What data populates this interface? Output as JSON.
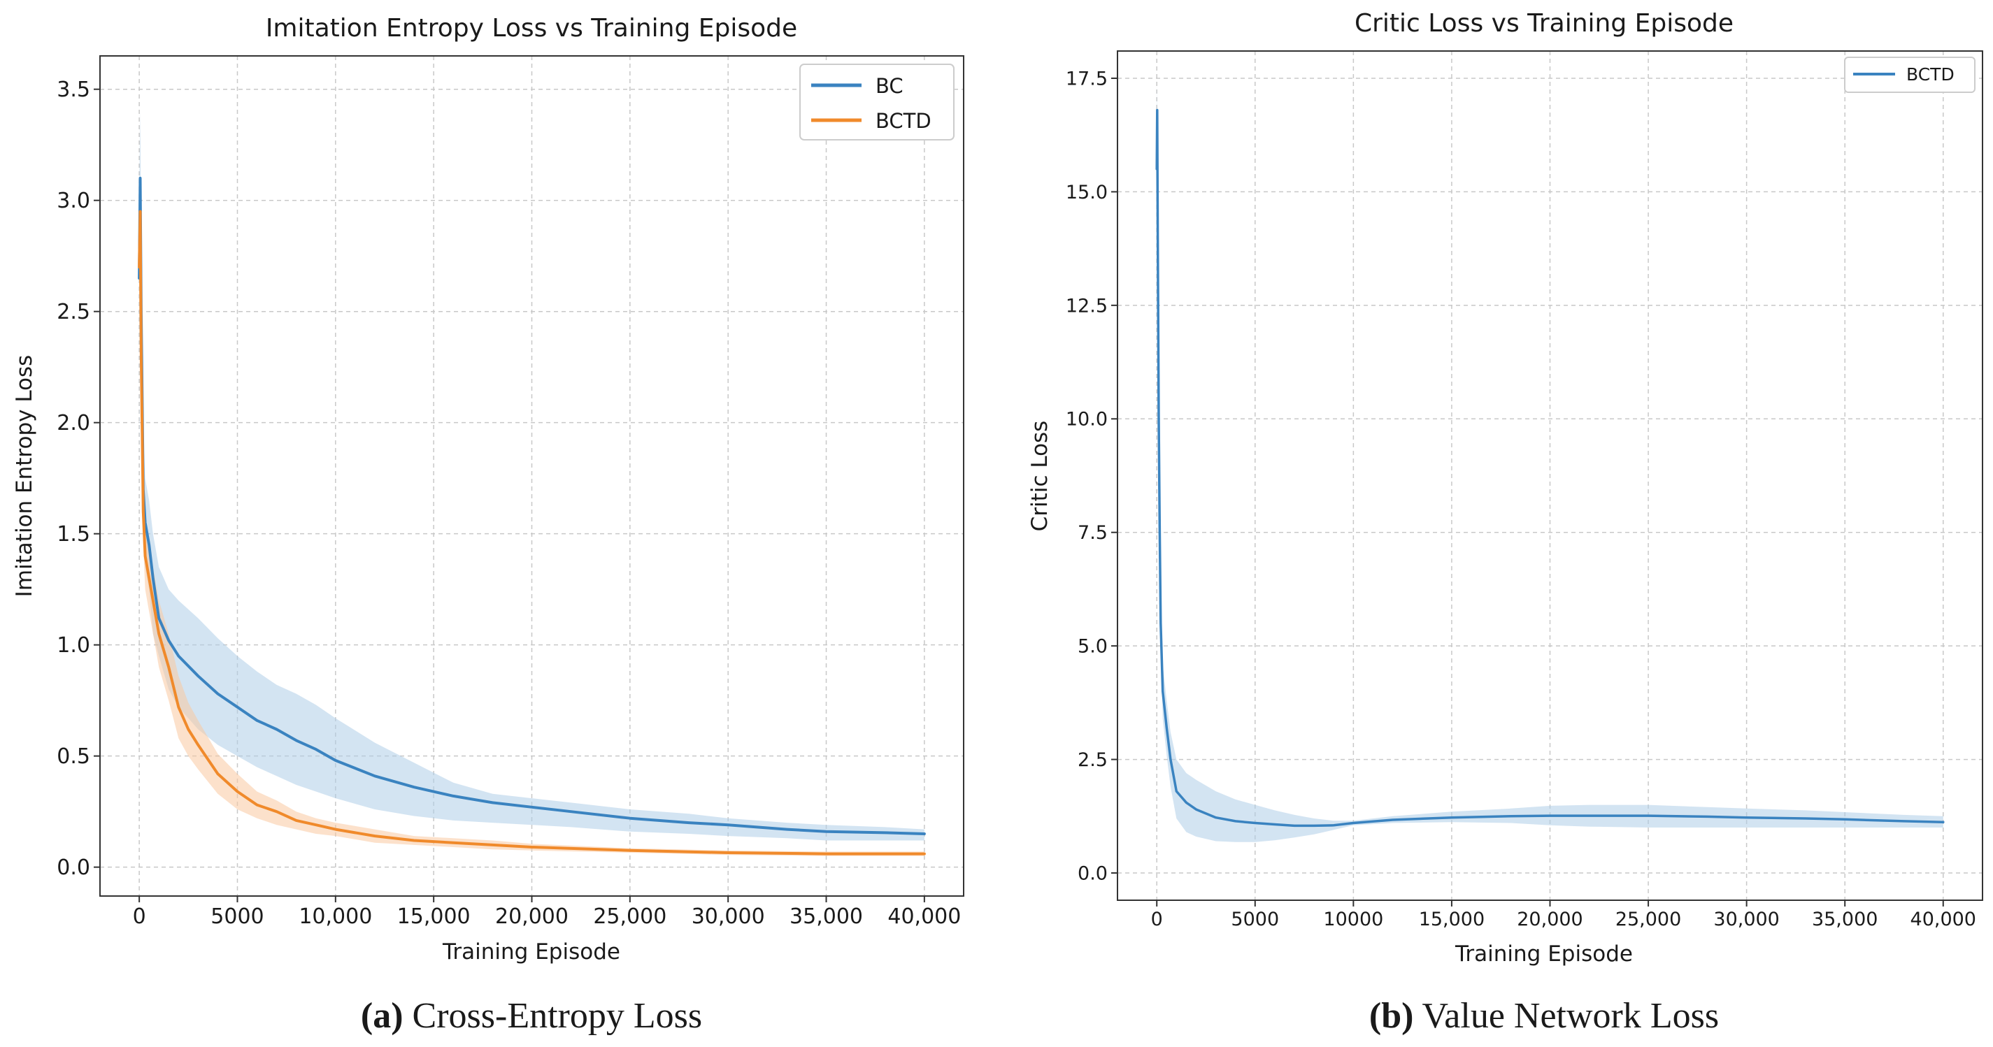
{
  "chart_data": [
    {
      "type": "line",
      "title": "Imitation Entropy Loss vs Training Episode",
      "xlabel": "Training Episode",
      "ylabel": "Imitation Entropy Loss",
      "xlim": [
        -2000,
        42000
      ],
      "ylim": [
        -0.13,
        3.65
      ],
      "xticks": [
        0,
        5000,
        10000,
        15000,
        20000,
        25000,
        30000,
        35000,
        40000
      ],
      "xtick_labels": [
        "0",
        "5000",
        "10,000",
        "15,000",
        "20,000",
        "25,000",
        "30,000",
        "35,000",
        "40,000"
      ],
      "yticks": [
        0.0,
        0.5,
        1.0,
        1.5,
        2.0,
        2.5,
        3.0,
        3.5
      ],
      "ytick_labels": [
        "0.0",
        "0.5",
        "1.0",
        "1.5",
        "2.0",
        "2.5",
        "3.0",
        "3.5"
      ],
      "grid": true,
      "legend_position": "top-right",
      "caption_letter": "(a)",
      "caption_text": " Cross-Entropy Loss",
      "series": [
        {
          "name": "BC",
          "color": "#3a83c0",
          "band_color": "#aecde8",
          "x": [
            0,
            50,
            100,
            200,
            300,
            500,
            700,
            1000,
            1500,
            2000,
            3000,
            4000,
            5000,
            6000,
            7000,
            8000,
            9000,
            10000,
            12000,
            14000,
            16000,
            18000,
            20000,
            22000,
            25000,
            28000,
            30000,
            33000,
            35000,
            38000,
            40000
          ],
          "values": [
            2.65,
            3.1,
            2.5,
            1.7,
            1.55,
            1.45,
            1.3,
            1.12,
            1.02,
            0.95,
            0.86,
            0.78,
            0.72,
            0.66,
            0.62,
            0.57,
            0.53,
            0.48,
            0.41,
            0.36,
            0.32,
            0.29,
            0.27,
            0.25,
            0.22,
            0.2,
            0.19,
            0.17,
            0.16,
            0.155,
            0.15
          ],
          "lower": [
            2.3,
            2.8,
            2.2,
            1.5,
            1.35,
            1.25,
            1.05,
            0.95,
            0.8,
            0.72,
            0.62,
            0.55,
            0.5,
            0.45,
            0.41,
            0.37,
            0.34,
            0.31,
            0.26,
            0.23,
            0.21,
            0.2,
            0.19,
            0.18,
            0.16,
            0.15,
            0.14,
            0.13,
            0.12,
            0.12,
            0.12
          ],
          "upper": [
            3.0,
            3.4,
            2.8,
            1.95,
            1.75,
            1.65,
            1.5,
            1.35,
            1.25,
            1.2,
            1.12,
            1.03,
            0.95,
            0.88,
            0.82,
            0.78,
            0.73,
            0.67,
            0.56,
            0.47,
            0.38,
            0.33,
            0.31,
            0.29,
            0.26,
            0.24,
            0.22,
            0.2,
            0.19,
            0.18,
            0.17
          ]
        },
        {
          "name": "BCTD",
          "color": "#f08a2b",
          "band_color": "#f9c8a0",
          "x": [
            0,
            50,
            100,
            200,
            300,
            500,
            700,
            1000,
            1500,
            2000,
            2500,
            3000,
            4000,
            5000,
            6000,
            7000,
            8000,
            9000,
            10000,
            12000,
            14000,
            16000,
            18000,
            20000,
            25000,
            30000,
            35000,
            40000
          ],
          "values": [
            2.7,
            2.95,
            2.3,
            1.6,
            1.4,
            1.3,
            1.2,
            1.05,
            0.9,
            0.72,
            0.62,
            0.55,
            0.42,
            0.34,
            0.28,
            0.25,
            0.21,
            0.19,
            0.17,
            0.14,
            0.12,
            0.11,
            0.1,
            0.09,
            0.075,
            0.065,
            0.06,
            0.06
          ],
          "lower": [
            2.5,
            2.75,
            2.1,
            1.45,
            1.25,
            1.15,
            1.05,
            0.9,
            0.75,
            0.58,
            0.5,
            0.44,
            0.33,
            0.26,
            0.22,
            0.19,
            0.17,
            0.15,
            0.14,
            0.11,
            0.1,
            0.09,
            0.08,
            0.075,
            0.065,
            0.055,
            0.05,
            0.05
          ],
          "upper": [
            2.9,
            3.1,
            2.5,
            1.75,
            1.55,
            1.45,
            1.35,
            1.2,
            1.05,
            0.86,
            0.74,
            0.66,
            0.51,
            0.42,
            0.34,
            0.3,
            0.25,
            0.22,
            0.2,
            0.17,
            0.14,
            0.13,
            0.12,
            0.105,
            0.085,
            0.075,
            0.07,
            0.07
          ]
        }
      ]
    },
    {
      "type": "line",
      "title": "Critic Loss vs Training Episode",
      "xlabel": "Training Episode",
      "ylabel": "Critic Loss",
      "xlim": [
        -2000,
        42000
      ],
      "ylim": [
        -0.6,
        18.1
      ],
      "xticks": [
        0,
        5000,
        10000,
        15000,
        20000,
        25000,
        30000,
        35000,
        40000
      ],
      "xtick_labels": [
        "0",
        "5000",
        "10000",
        "15,000",
        "20,000",
        "25,000",
        "30,000",
        "35,000",
        "40,000"
      ],
      "yticks": [
        0.0,
        2.5,
        5.0,
        7.5,
        10.0,
        12.5,
        15.0,
        17.5
      ],
      "ytick_labels": [
        "0.0",
        "2.5",
        "5.0",
        "7.5",
        "10.0",
        "12.5",
        "15.0",
        "17.5"
      ],
      "grid": true,
      "legend_position": "top-right",
      "caption_letter": "(b)",
      "caption_text": " Value Network Loss",
      "series": [
        {
          "name": "BCTD",
          "color": "#3a83c0",
          "band_color": "#aecde8",
          "x": [
            0,
            20,
            50,
            100,
            150,
            200,
            300,
            400,
            500,
            700,
            1000,
            1500,
            2000,
            3000,
            4000,
            5000,
            6000,
            7000,
            8000,
            9000,
            10000,
            12000,
            15000,
            18000,
            20000,
            22000,
            25000,
            28000,
            30000,
            33000,
            35000,
            38000,
            40000
          ],
          "values": [
            15.5,
            16.8,
            14.0,
            10.0,
            7.5,
            5.5,
            4.0,
            3.6,
            3.2,
            2.5,
            1.8,
            1.55,
            1.4,
            1.22,
            1.14,
            1.1,
            1.07,
            1.04,
            1.04,
            1.05,
            1.1,
            1.17,
            1.22,
            1.25,
            1.26,
            1.26,
            1.26,
            1.24,
            1.22,
            1.2,
            1.18,
            1.14,
            1.12
          ],
          "lower": [
            15.0,
            16.2,
            13.2,
            9.2,
            6.8,
            4.9,
            3.4,
            3.0,
            2.6,
            1.9,
            1.2,
            0.9,
            0.8,
            0.7,
            0.68,
            0.68,
            0.72,
            0.78,
            0.85,
            0.95,
            1.05,
            1.1,
            1.12,
            1.1,
            1.05,
            1.02,
            1.0,
            1.0,
            1.0,
            1.0,
            1.0,
            1.0,
            1.0
          ],
          "upper": [
            16.0,
            17.4,
            14.8,
            10.8,
            8.2,
            6.1,
            4.6,
            4.2,
            3.8,
            3.1,
            2.5,
            2.2,
            2.05,
            1.8,
            1.62,
            1.5,
            1.38,
            1.28,
            1.2,
            1.15,
            1.15,
            1.25,
            1.35,
            1.42,
            1.48,
            1.5,
            1.5,
            1.45,
            1.42,
            1.38,
            1.34,
            1.28,
            1.25
          ]
        }
      ]
    }
  ]
}
